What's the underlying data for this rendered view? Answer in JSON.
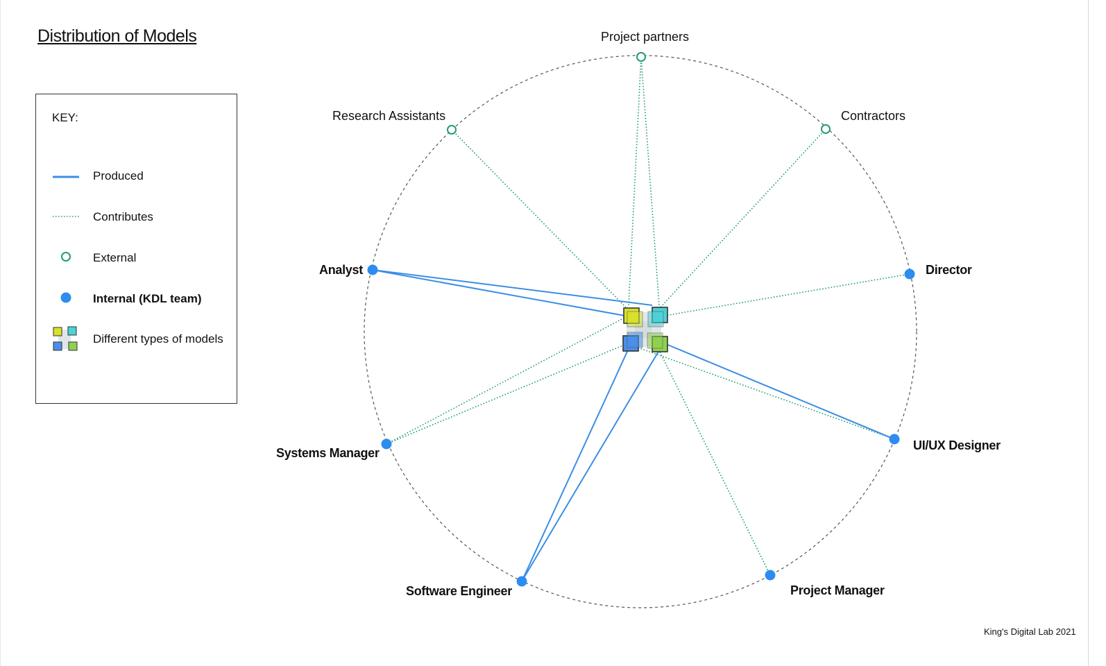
{
  "title": "Distribution of Models",
  "credit": "King's Digital Lab 2021",
  "colors": {
    "produced": "#3b8de6",
    "contributes": "#1f9e6e",
    "external": "#1f9e6e",
    "internal": "#2d8cf0",
    "circle": "#555555",
    "model_yellow": "#d7e22b",
    "model_cyan": "#4dd1d6",
    "model_blue": "#4a8fe8",
    "model_green": "#8fd14f"
  },
  "key": {
    "heading": "KEY:",
    "items": [
      {
        "label": "Produced",
        "symbol": "solid-line-icon"
      },
      {
        "label": "Contributes",
        "symbol": "dotted-line-icon"
      },
      {
        "label": "External",
        "symbol": "open-circle-icon"
      },
      {
        "label": "Internal (KDL team)",
        "symbol": "filled-circle-icon"
      },
      {
        "label": "Different types of models",
        "symbol": "model-squares-icon"
      }
    ]
  },
  "roles": [
    {
      "id": "project-partners",
      "label": "Project partners",
      "type": "external",
      "relation": "contributes",
      "targets": [
        "yellow",
        "cyan"
      ]
    },
    {
      "id": "contractors",
      "label": "Contractors",
      "type": "external",
      "relation": "contributes",
      "targets": [
        "cyan"
      ]
    },
    {
      "id": "director",
      "label": "Director",
      "type": "internal",
      "relation": "contributes",
      "targets": [
        "cyan"
      ]
    },
    {
      "id": "ux-designer",
      "label": "UI/UX Designer",
      "type": "internal",
      "relation": "mixed",
      "produces": [
        "green"
      ],
      "contributes": [
        "blue"
      ]
    },
    {
      "id": "project-manager",
      "label": "Project Manager",
      "type": "internal",
      "relation": "contributes",
      "targets": [
        "green"
      ]
    },
    {
      "id": "software-engineer",
      "label": "Software Engineer",
      "type": "internal",
      "relation": "produced",
      "targets": [
        "blue",
        "green"
      ]
    },
    {
      "id": "systems-manager",
      "label": "Systems Manager",
      "type": "internal",
      "relation": "contributes",
      "targets": [
        "yellow",
        "blue"
      ]
    },
    {
      "id": "analyst",
      "label": "Analyst",
      "type": "internal",
      "relation": "produced",
      "targets": [
        "yellow",
        "cyan"
      ]
    },
    {
      "id": "research-assistants",
      "label": "Research Assistants",
      "type": "external",
      "relation": "contributes",
      "targets": [
        "yellow"
      ]
    }
  ]
}
